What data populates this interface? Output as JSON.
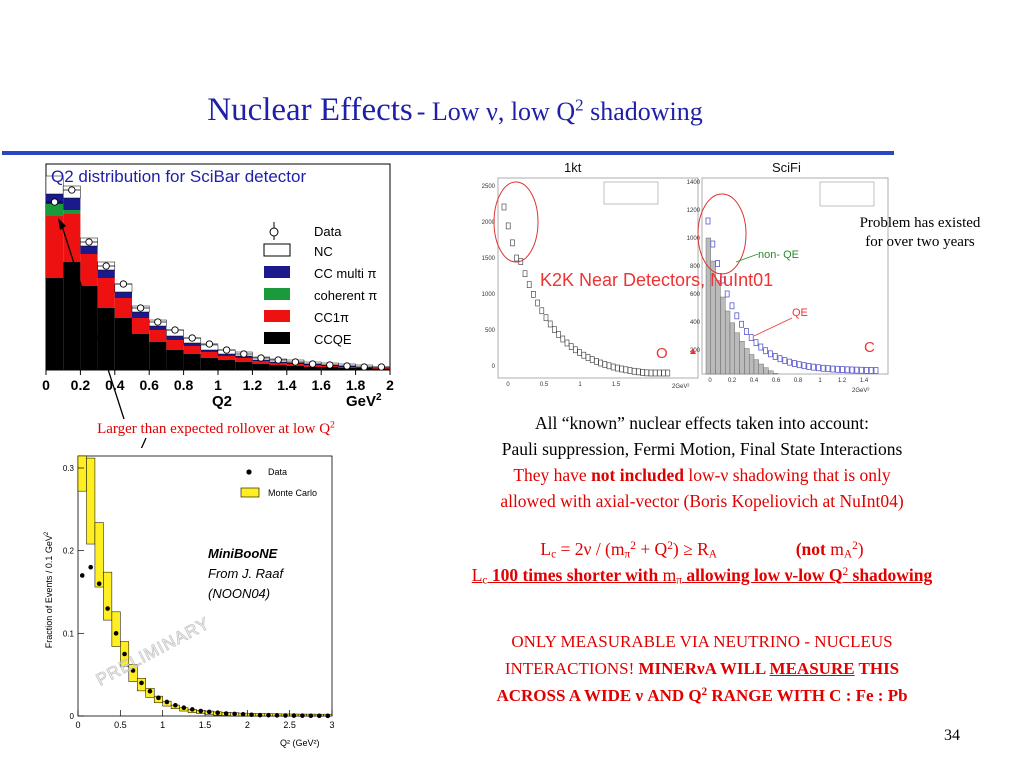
{
  "title": {
    "main": "Nuclear Effects",
    "sub": "- Low ν, low Q",
    "sub_sup": "2",
    "sub_tail": " shadowing"
  },
  "scibar_plot": {
    "title": "Q2 distribution for SciBar detector",
    "legend": [
      "Data",
      "NC",
      "CC multi π",
      "coherent π",
      "CC1π",
      "CCQE"
    ],
    "x_ticks": [
      "0",
      "0.2",
      "0.4",
      "0.6",
      "0.8",
      "1",
      "1.2",
      "1.4",
      "1.6",
      "1.8",
      "2"
    ],
    "xlabel": "Q2",
    "xunit": "GeV",
    "xunit_sup": "2",
    "colors": {
      "nc": "#ffffff",
      "ccmulti": "#1a1a8c",
      "coherent": "#1a9a3a",
      "cc1pi": "#ee1111",
      "ccqe": "#000000"
    }
  },
  "rollover_note": {
    "text": "Larger than expected rollover at low Q",
    "sup": "2"
  },
  "k2k_plot": {
    "panel_left_title": "1kt",
    "panel_right_title": "SciFi",
    "overlay_title": "K2K Near Detectors, NuInt01",
    "left_y_ticks": [
      "2500",
      "2000",
      "1500",
      "1000",
      "500",
      "0"
    ],
    "left_x_ticks": [
      "0",
      "0.5",
      "1",
      "1.5"
    ],
    "left_x_unit": "2GeV²",
    "right_y_ticks": [
      "1400",
      "1200",
      "1000",
      "800",
      "600",
      "400",
      "200"
    ],
    "right_x_ticks": [
      "0",
      "0.2",
      "0.4",
      "0.6",
      "0.8",
      "1",
      "1.2",
      "1.4"
    ],
    "right_x_unit": "2GeV²",
    "label_o": "O",
    "label_c": "C",
    "label_nonqe": "non- QE",
    "label_qe": "QE"
  },
  "problem_note": {
    "line1": "Problem has existed",
    "line2": "for over two years"
  },
  "miniboone_plot": {
    "ylabel": "Fraction of Events / 0.1 GeV",
    "ylabel_sup": "2",
    "y_ticks": [
      "0.3",
      "0.2",
      "0.1",
      "0"
    ],
    "x_ticks": [
      "0",
      "0.5",
      "1",
      "1.5",
      "2",
      "2.5",
      "3"
    ],
    "xlabel": "Q² (GeV²)",
    "legend_data": "Data",
    "legend_mc": "Monte Carlo",
    "experiment": "MiniBooNE",
    "credit1": "From J. Raaf",
    "credit2": "(NOON04)",
    "watermark": "PRELIMINARY"
  },
  "body": {
    "line1": "All “known” nuclear effects taken into account:",
    "line2": "Pauli suppression, Fermi Motion, Final State Interactions",
    "line3a": "They have ",
    "line3b": "not included",
    "line3c": " low-ν shadowing that is only",
    "line4": "allowed with axial-vector (Boris Kopeliovich at NuInt04)"
  },
  "formula": {
    "lc": "L",
    "lc_sub": "c",
    "eq": " = 2ν / (m",
    "pi_sub": "π",
    "sq": "2",
    "plus": " + Q",
    "q_sup": "2",
    "ge": ")  ≥  R",
    "ra_sub": "A",
    "not": "(not",
    "ma": " m",
    "ma_sub": "A",
    "ma_sup": "2",
    "close": ")"
  },
  "formula2": {
    "lc": "L",
    "lc_sub": "c",
    "mid": " 100 times shorter with ",
    "m": "m",
    "m_sub": "π",
    "tail": " allowing low ν-low Q",
    "tail_sup": "2",
    "end": " shadowing"
  },
  "caps": {
    "line1": "ONLY MEASURABLE VIA NEUTRINO - NUCLEUS",
    "line2a": "INTERACTIONS!  ",
    "line2b": "MINERνA WILL ",
    "line2c": "MEASURE",
    "line2d": " THIS",
    "line3a": "ACROSS A WIDE ν AND Q",
    "line3sup": "2",
    "line3b": " RANGE WITH  C : Fe : Pb"
  },
  "page_number": "34"
}
